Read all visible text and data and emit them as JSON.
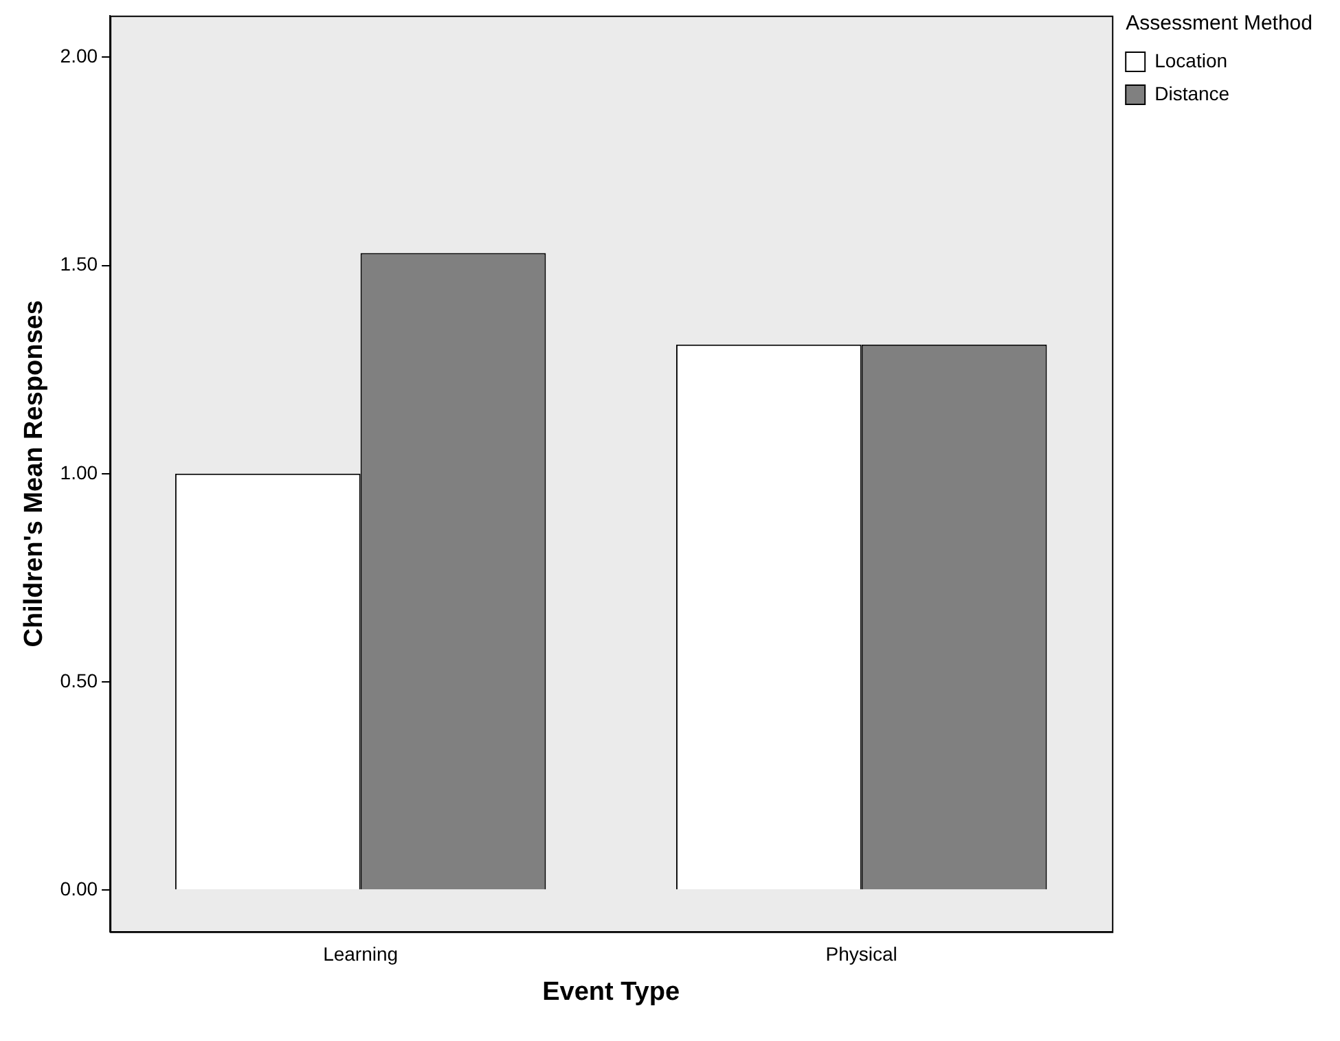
{
  "chart_data": {
    "type": "bar",
    "xlabel": "Event Type",
    "ylabel": "Children's Mean Responses",
    "legend_title": "Assessment Method",
    "categories": [
      "Learning",
      "Physical"
    ],
    "series": [
      {
        "name": "Location",
        "color": "#ffffff",
        "values": [
          1.0,
          1.31
        ]
      },
      {
        "name": "Distance",
        "color": "#808080",
        "values": [
          1.53,
          1.31
        ]
      }
    ],
    "ylim": [
      -0.1,
      2.1
    ],
    "yticks": [
      {
        "value": 0,
        "label": "0.00"
      },
      {
        "value": 0.5,
        "label": "0.50"
      },
      {
        "value": 1,
        "label": "1.00"
      },
      {
        "value": 1.5,
        "label": "1.50"
      },
      {
        "value": 2,
        "label": "2.00"
      }
    ],
    "grid": false,
    "legend": "top right"
  }
}
